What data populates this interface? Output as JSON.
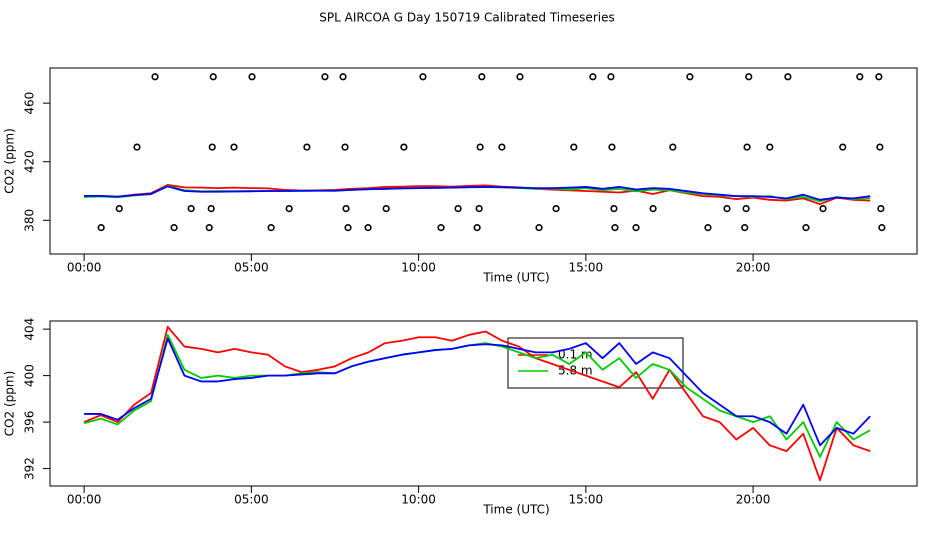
{
  "chart_data": [
    {
      "type": "line",
      "title": "SPL AIRCOA G  Day 150719  Calibrated Timeseries",
      "xlabel": "Time (UTC)",
      "ylabel": "CO2 (ppm)",
      "xlim": [
        -1.02,
        24.9
      ],
      "ylim": [
        357,
        484
      ],
      "xticks": [
        {
          "value": 0,
          "label": "00:00"
        },
        {
          "value": 5,
          "label": "05:00"
        },
        {
          "value": 10,
          "label": "10:00"
        },
        {
          "value": 15,
          "label": "15:00"
        },
        {
          "value": 20,
          "label": "20:00"
        }
      ],
      "yticks": [
        380,
        420,
        460
      ],
      "x": [
        0,
        0.5,
        1,
        1.5,
        2,
        2.5,
        3,
        3.5,
        4,
        4.5,
        5,
        5.5,
        6,
        6.5,
        7,
        7.5,
        8,
        8.5,
        9,
        9.5,
        10,
        10.5,
        11,
        11.5,
        12,
        12.5,
        13,
        13.5,
        14,
        14.5,
        15,
        15.5,
        16,
        16.5,
        17,
        17.5,
        18,
        18.5,
        19,
        19.5,
        20,
        20.5,
        21,
        21.5,
        22,
        22.5,
        23,
        23.5
      ],
      "series": [
        {
          "color": "#ff0000",
          "values": [
            396.0,
            396.6,
            396.0,
            397.5,
            398.5,
            404.2,
            402.5,
            402.3,
            402.0,
            402.3,
            402.0,
            401.8,
            400.8,
            400.3,
            400.5,
            400.8,
            401.5,
            402.0,
            402.8,
            403.0,
            403.3,
            403.3,
            403.0,
            403.5,
            403.8,
            403.0,
            402.5,
            401.5,
            401.0,
            400.5,
            400.0,
            399.5,
            399.0,
            400.3,
            398.0,
            400.5,
            398.5,
            396.5,
            396.0,
            394.5,
            395.5,
            394.0,
            393.5,
            395.0,
            391.0,
            395.5,
            394.0,
            393.5
          ]
        },
        {
          "color": "#00cc00",
          "values": [
            395.9,
            396.3,
            395.8,
            397.0,
            397.8,
            403.5,
            400.5,
            399.8,
            400.0,
            399.8,
            400.0,
            400.0,
            400.0,
            400.2,
            400.3,
            400.2,
            400.8,
            401.2,
            401.5,
            401.8,
            402.0,
            402.2,
            402.3,
            402.6,
            402.8,
            402.5,
            402.0,
            401.5,
            401.8,
            401.0,
            402.0,
            400.5,
            401.5,
            399.8,
            401.0,
            400.5,
            399.0,
            398.0,
            397.0,
            396.5,
            396.0,
            396.5,
            394.5,
            396.0,
            393.0,
            396.0,
            394.5,
            395.3
          ]
        },
        {
          "color": "#0000ff",
          "values": [
            396.7,
            396.7,
            396.2,
            397.2,
            398.0,
            403.2,
            400.0,
            399.5,
            399.5,
            399.7,
            399.8,
            400.0,
            400.0,
            400.1,
            400.2,
            400.2,
            400.8,
            401.2,
            401.5,
            401.8,
            402.0,
            402.2,
            402.3,
            402.6,
            402.7,
            402.6,
            402.3,
            402.0,
            402.0,
            402.3,
            402.8,
            401.5,
            402.8,
            401.0,
            402.0,
            401.5,
            400.0,
            398.5,
            397.5,
            396.5,
            396.5,
            396.0,
            395.0,
            397.5,
            394.0,
            395.5,
            395.0,
            396.5
          ]
        },
        {
          "type": "scatter",
          "color": "#000000",
          "x": [
            2.12,
            3.86,
            5.02,
            7.2,
            7.74,
            10.13,
            11.89,
            13.03,
            15.21,
            15.75,
            18.11,
            19.87,
            21.04,
            23.19,
            23.76,
            1.58,
            3.83,
            4.48,
            6.66,
            7.8,
            9.56,
            11.84,
            12.49,
            14.64,
            15.78,
            17.6,
            19.82,
            20.5,
            22.68,
            23.79,
            1.05,
            3.2,
            3.8,
            6.13,
            7.83,
            9.03,
            11.18,
            11.81,
            14.11,
            15.84,
            17.01,
            19.22,
            19.79,
            22.09,
            23.82,
            0.51,
            2.69,
            3.74,
            5.59,
            7.89,
            8.49,
            10.67,
            11.75,
            13.6,
            15.87,
            16.5,
            18.65,
            19.75,
            21.58,
            23.85
          ],
          "values": [
            478,
            478,
            478,
            478,
            478,
            478,
            478,
            478,
            478,
            478,
            478,
            478,
            478,
            478,
            478,
            430,
            430,
            430,
            430,
            430,
            430,
            430,
            430,
            430,
            430,
            430,
            430,
            430,
            430,
            430,
            388,
            388,
            388,
            388,
            388,
            388,
            388,
            388,
            388,
            388,
            388,
            388,
            388,
            388,
            388,
            375,
            375,
            375,
            375,
            375,
            375,
            375,
            375,
            375,
            375,
            375,
            375,
            375,
            375,
            375
          ]
        }
      ]
    },
    {
      "type": "line",
      "xlabel": "Time (UTC)",
      "ylabel": "CO2 (ppm)",
      "xlim": [
        -1.02,
        24.9
      ],
      "ylim": [
        390.5,
        404.7
      ],
      "xticks": [
        {
          "value": 0,
          "label": "00:00"
        },
        {
          "value": 5,
          "label": "05:00"
        },
        {
          "value": 10,
          "label": "10:00"
        },
        {
          "value": 15,
          "label": "15:00"
        },
        {
          "value": 20,
          "label": "20:00"
        }
      ],
      "yticks": [
        392,
        396,
        400,
        404
      ],
      "legend": "center",
      "x": [
        0,
        0.5,
        1,
        1.5,
        2,
        2.5,
        3,
        3.5,
        4,
        4.5,
        5,
        5.5,
        6,
        6.5,
        7,
        7.5,
        8,
        8.5,
        9,
        9.5,
        10,
        10.5,
        11,
        11.5,
        12,
        12.5,
        13,
        13.5,
        14,
        14.5,
        15,
        15.5,
        16,
        16.5,
        17,
        17.5,
        18,
        18.5,
        19,
        19.5,
        20,
        20.5,
        21,
        21.5,
        22,
        22.5,
        23,
        23.5
      ],
      "series": [
        {
          "name": "0.1 m",
          "color": "#ff0000",
          "values": [
            396.0,
            396.6,
            396.0,
            397.5,
            398.5,
            404.2,
            402.5,
            402.3,
            402.0,
            402.3,
            402.0,
            401.8,
            400.8,
            400.3,
            400.5,
            400.8,
            401.5,
            402.0,
            402.8,
            403.0,
            403.3,
            403.3,
            403.0,
            403.5,
            403.8,
            403.0,
            402.5,
            401.5,
            401.0,
            400.5,
            400.0,
            399.5,
            399.0,
            400.3,
            398.0,
            400.5,
            398.5,
            396.5,
            396.0,
            394.5,
            395.5,
            394.0,
            393.5,
            395.0,
            391.0,
            395.5,
            394.0,
            393.5
          ]
        },
        {
          "name": "5.8 m",
          "color": "#00cc00",
          "values": [
            395.9,
            396.3,
            395.8,
            397.0,
            397.8,
            403.5,
            400.5,
            399.8,
            400.0,
            399.8,
            400.0,
            400.0,
            400.0,
            400.2,
            400.3,
            400.2,
            400.8,
            401.2,
            401.5,
            401.8,
            402.0,
            402.2,
            402.3,
            402.6,
            402.8,
            402.5,
            402.0,
            401.5,
            401.8,
            401.0,
            402.0,
            400.5,
            401.5,
            399.8,
            401.0,
            400.5,
            399.0,
            398.0,
            397.0,
            396.5,
            396.0,
            396.5,
            394.5,
            396.0,
            393.0,
            396.0,
            394.5,
            395.3
          ]
        },
        {
          "color": "#0000ff",
          "values": [
            396.7,
            396.7,
            396.2,
            397.2,
            398.0,
            403.2,
            400.0,
            399.5,
            399.5,
            399.7,
            399.8,
            400.0,
            400.0,
            400.1,
            400.2,
            400.2,
            400.8,
            401.2,
            401.5,
            401.8,
            402.0,
            402.2,
            402.3,
            402.6,
            402.7,
            402.6,
            402.3,
            402.0,
            402.0,
            402.3,
            402.8,
            401.5,
            402.8,
            401.0,
            402.0,
            401.5,
            400.0,
            398.5,
            397.5,
            396.5,
            396.5,
            396.0,
            395.0,
            397.5,
            394.0,
            395.5,
            395.0,
            396.5
          ]
        }
      ]
    }
  ]
}
